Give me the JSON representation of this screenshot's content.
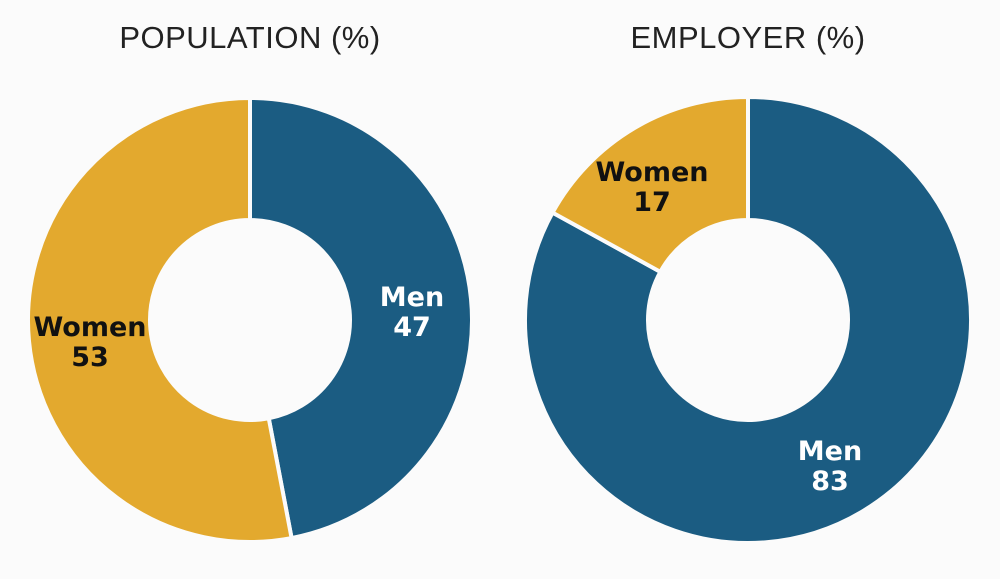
{
  "chart_data": [
    {
      "type": "pie",
      "donut": true,
      "title": "POPULATION (%)",
      "categories": [
        "Men",
        "Women"
      ],
      "values": [
        47,
        53
      ],
      "colors": [
        "#1b5c82",
        "#e3a92e"
      ],
      "label_colors": [
        "#ffffff",
        "#111111"
      ]
    },
    {
      "type": "pie",
      "donut": true,
      "title": "EMPLOYER (%)",
      "categories": [
        "Men",
        "Women"
      ],
      "values": [
        83,
        17
      ],
      "colors": [
        "#1b5c82",
        "#e3a92e"
      ],
      "label_colors": [
        "#ffffff",
        "#111111"
      ]
    }
  ]
}
